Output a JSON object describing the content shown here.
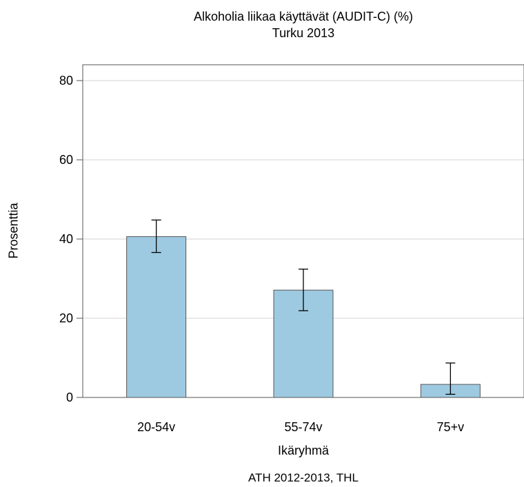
{
  "chart_data": {
    "type": "bar",
    "title": "Alkoholia liikaa käyttävät (AUDIT-C) (%)",
    "subtitle": "Turku 2013",
    "xlabel": "Ikäryhmä",
    "ylabel": "Prosenttia",
    "source": "ATH 2012-2013, THL",
    "categories": [
      "20-54v",
      "55-74v",
      "75+v"
    ],
    "values": [
      40.6,
      27.1,
      3.3
    ],
    "error_low": [
      36.6,
      21.9,
      0.8
    ],
    "error_high": [
      44.8,
      32.4,
      8.7
    ],
    "ylim": [
      0,
      84
    ],
    "yticks": [
      0,
      20,
      40,
      60,
      80
    ],
    "grid": true,
    "colors": {
      "bar_fill": "#9ecae1",
      "bar_stroke": "#555555",
      "grid": "#d3d3d3",
      "axis": "#555555"
    }
  }
}
